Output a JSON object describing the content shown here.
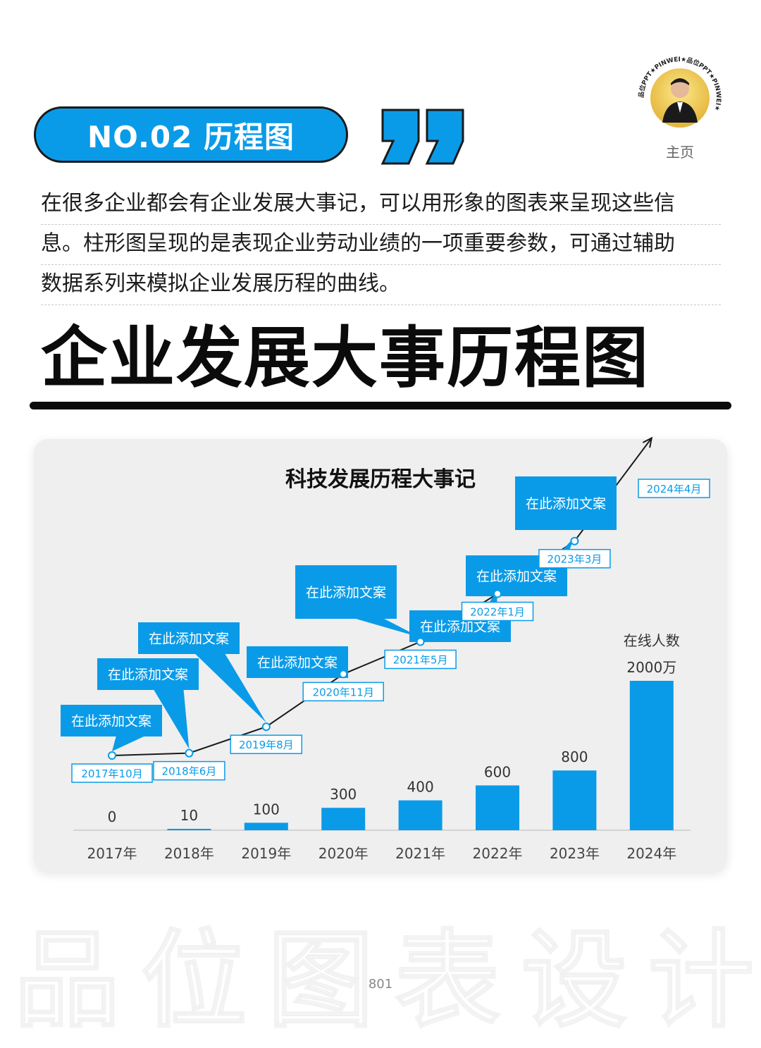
{
  "badge": {
    "label": "NO.02 历程图"
  },
  "avatar": {
    "ring_text": "品位PPT★PINWEI★品位PPT★PINWEI★",
    "caption": "主页"
  },
  "intro": {
    "lines": [
      "在很多企业都会有企业发展大事记，可以用形象的图表来呈现这些信",
      "息。柱形图呈现的是表现企业劳动业绩的一项重要参数，可通过辅助",
      "数据系列来模拟企业发展历程的曲线。"
    ]
  },
  "headline": "企业发展大事历程图",
  "watermark": "品位图表设计",
  "page_number": "801",
  "colors": {
    "accent": "#0a9be8",
    "card": "#efefef",
    "line": "#1a1a1a"
  },
  "chart_data": {
    "type": "bar",
    "title": "科技发展历程大事记",
    "categories": [
      "2017年",
      "2018年",
      "2019年",
      "2020年",
      "2021年",
      "2022年",
      "2023年",
      "2024年"
    ],
    "series": [
      {
        "name": "在线人数",
        "values": [
          0,
          10,
          100,
          300,
          400,
          600,
          800,
          2000
        ],
        "labels": [
          "0",
          "10",
          "100",
          "300",
          "400",
          "600",
          "800",
          "2000万"
        ]
      }
    ],
    "timeline": {
      "milestones": [
        "2017年10月",
        "2018年6月",
        "2019年8月",
        "2020年11月",
        "2021年5月",
        "2022年1月",
        "2023年3月",
        "2024年4月"
      ],
      "callout_text": "在此添加文案",
      "levels": [
        0,
        0.2,
        2.4,
        6.8,
        9.5,
        13.5,
        17.9,
        26.5
      ]
    },
    "legend": "none",
    "grid": false
  }
}
